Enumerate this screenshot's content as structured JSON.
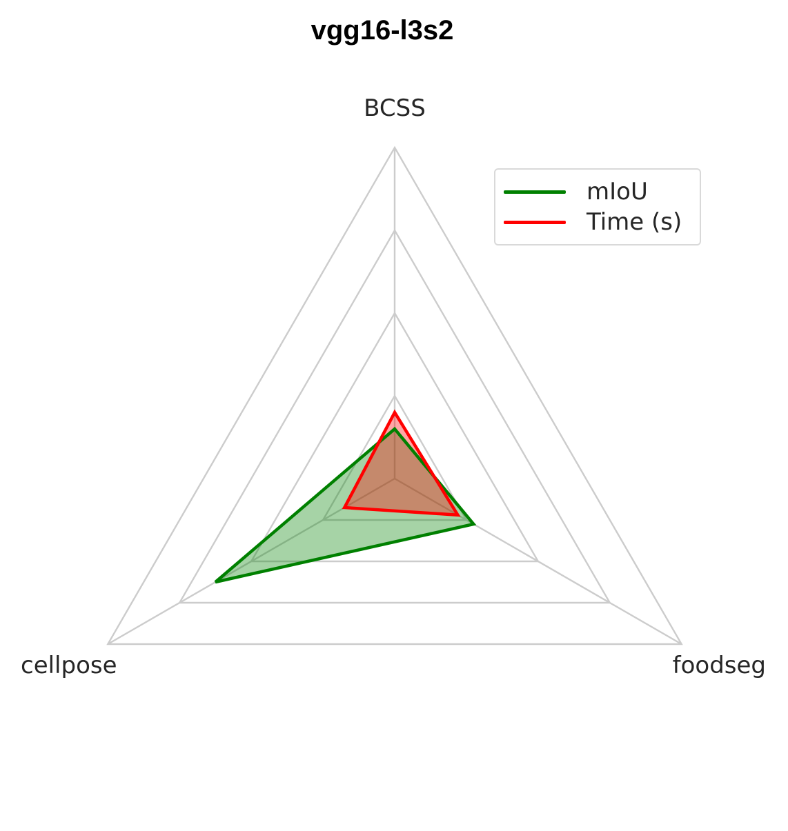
{
  "chart_data": {
    "type": "radar",
    "title": "vgg16-l3s2",
    "axes": [
      "BCSS",
      "foodseg",
      "cellpose"
    ],
    "rmax": 4,
    "grid_levels": [
      1,
      2,
      3,
      4
    ],
    "grid": true,
    "legend_position": "top-right",
    "series": [
      {
        "name": "mIoU",
        "values": [
          0.6,
          1.1,
          2.5
        ],
        "color": "#008000",
        "fill": "#008000"
      },
      {
        "name": "Time (s)",
        "values": [
          0.8,
          0.88,
          0.7
        ],
        "color": "#ff0000",
        "fill": "#ff0000"
      }
    ]
  }
}
